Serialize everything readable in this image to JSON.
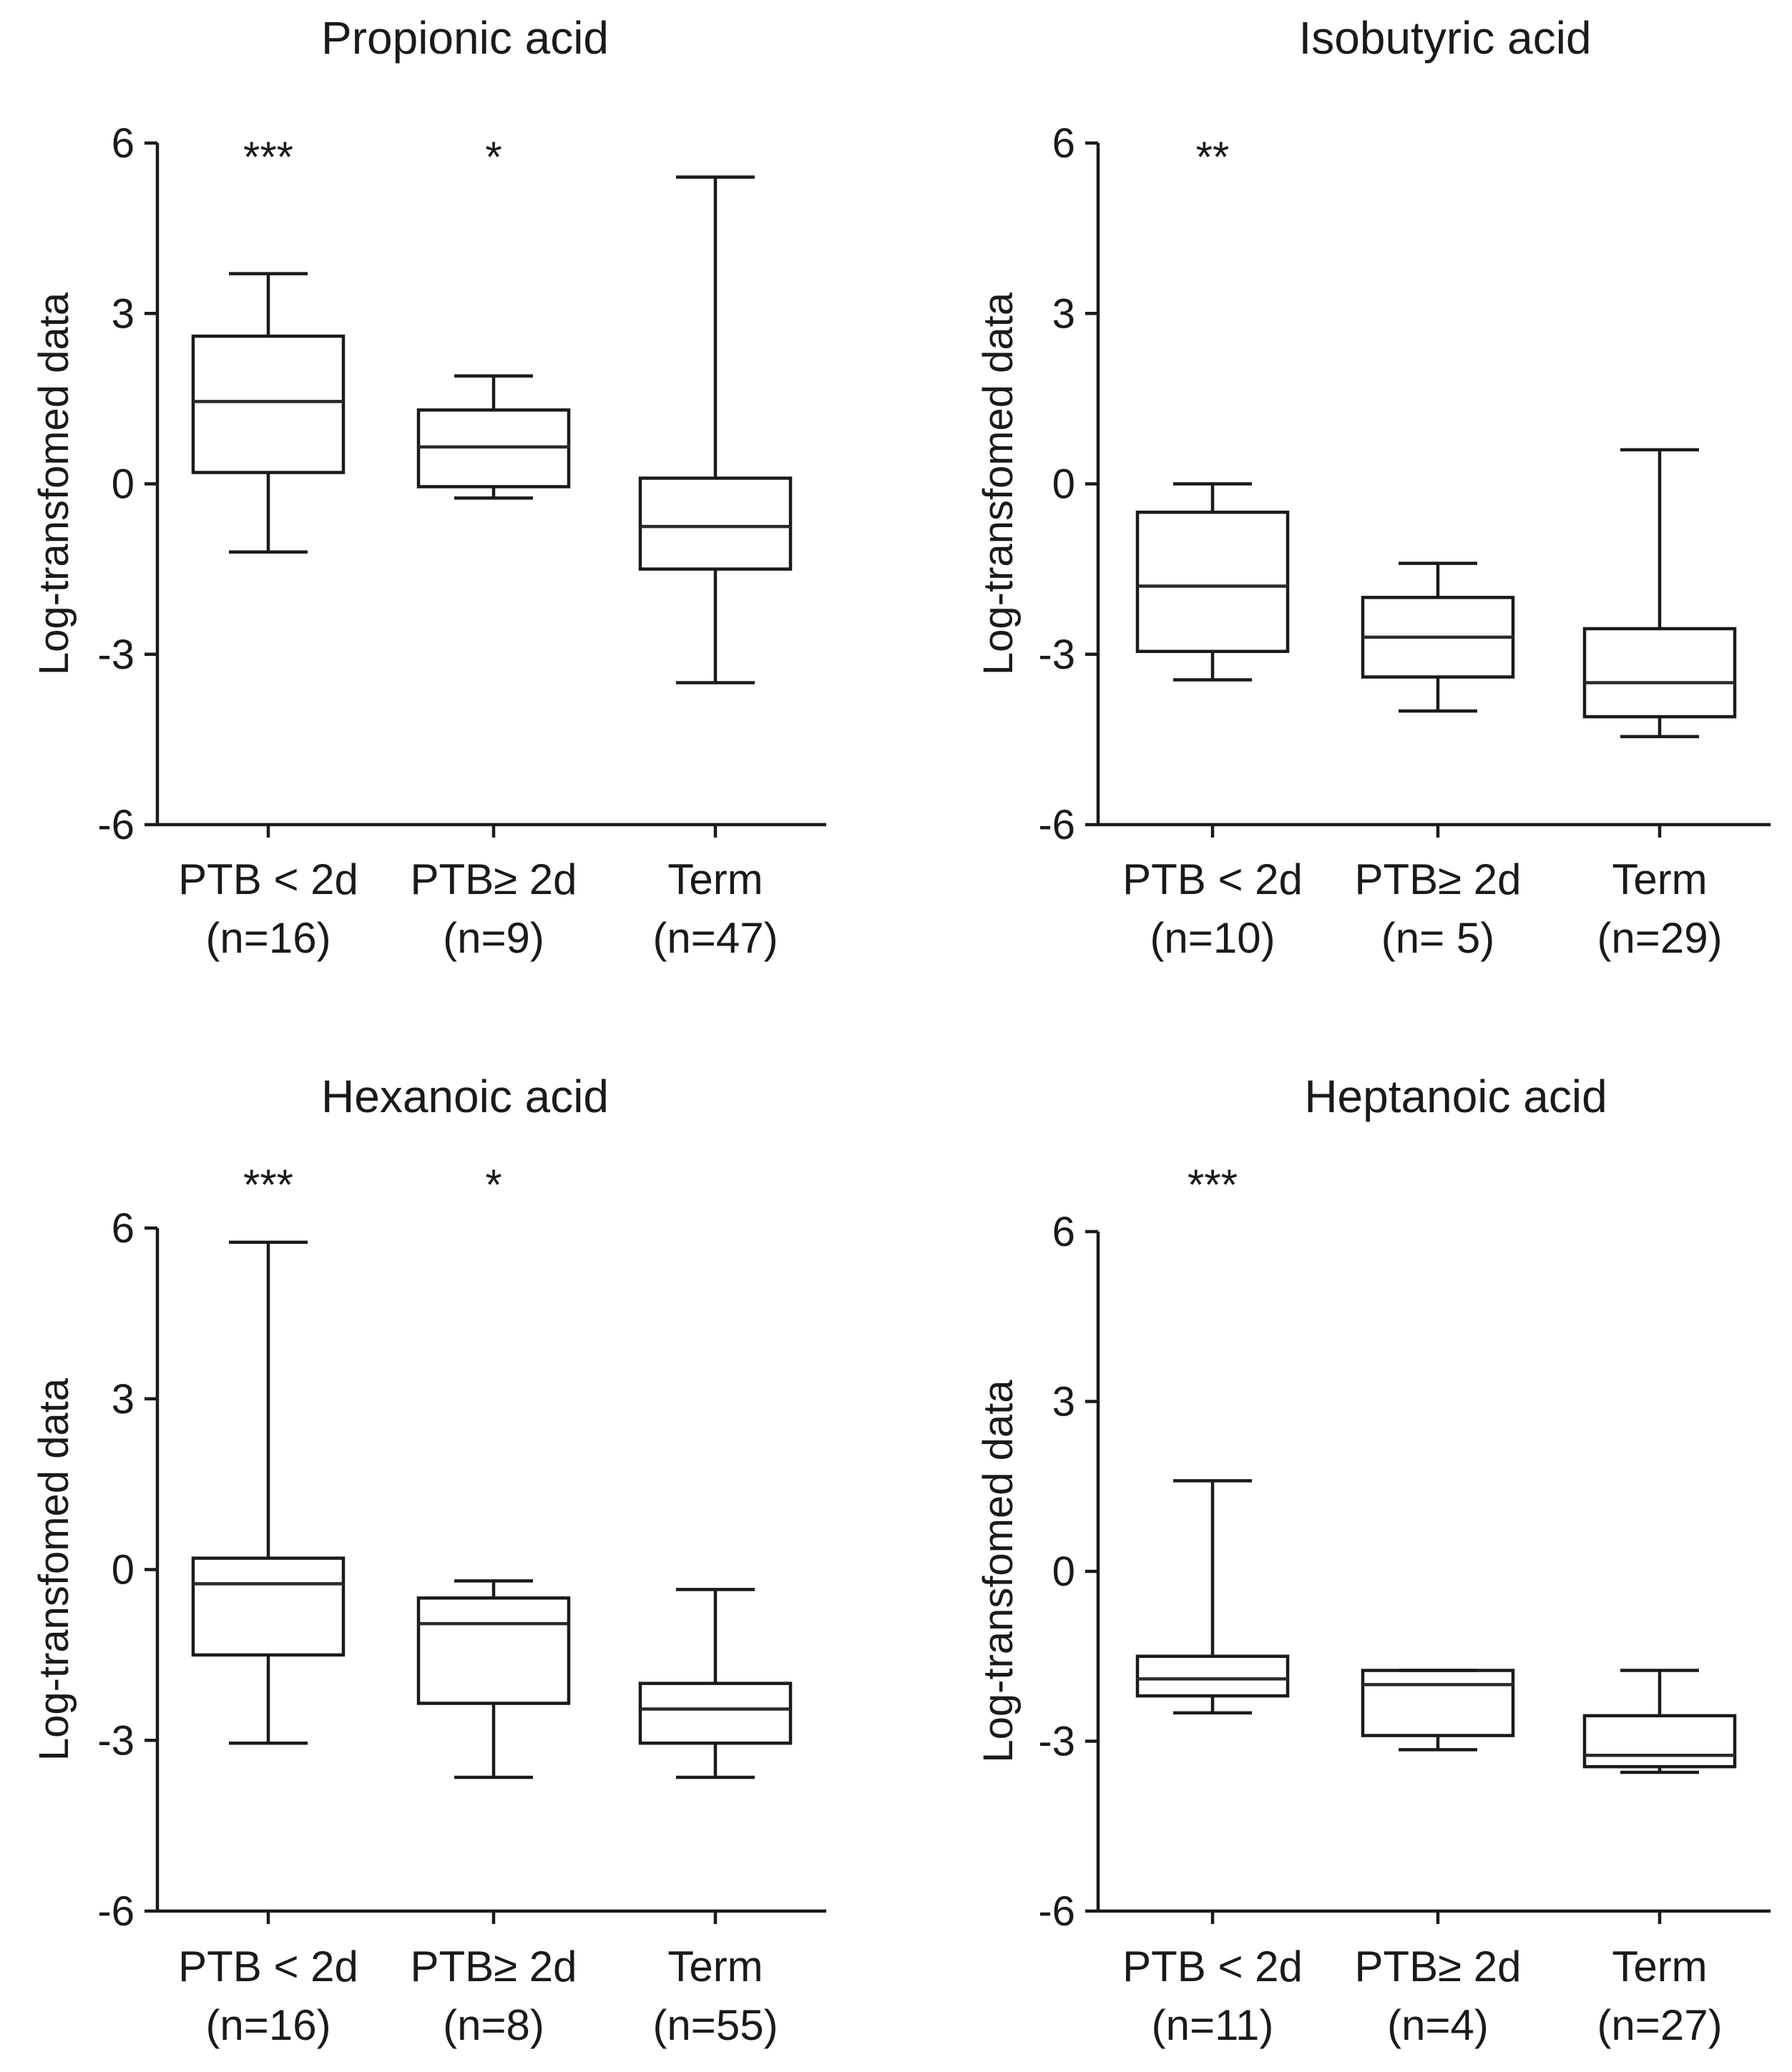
{
  "chart_data": [
    {
      "type": "boxplot",
      "title": "Propionic acid",
      "ylabel": "Log-transfomed data",
      "ylim": [
        -6,
        6
      ],
      "yticks": [
        "6",
        "3",
        "0",
        "-3",
        "-6"
      ],
      "categories": [
        {
          "label": "PTB < 2d",
          "n_label": "(n=16)",
          "whisker_low": -1.2,
          "q1": 0.2,
          "median": 1.45,
          "q3": 2.6,
          "whisker_high": 3.7,
          "significance": "***"
        },
        {
          "label": "PTB≥ 2d",
          "n_label": "(n=9)",
          "whisker_low": -0.25,
          "q1": -0.05,
          "median": 0.65,
          "q3": 1.3,
          "whisker_high": 1.9,
          "significance": "*"
        },
        {
          "label": "Term",
          "n_label": "(n=47)",
          "whisker_low": -3.5,
          "q1": -1.5,
          "median": -0.75,
          "q3": 0.1,
          "whisker_high": 5.4,
          "significance": ""
        }
      ]
    },
    {
      "type": "boxplot",
      "title": "Isobutyric acid",
      "ylabel": "Log-transfomed data",
      "ylim": [
        -6,
        6
      ],
      "yticks": [
        "6",
        "3",
        "0",
        "-3",
        "-6"
      ],
      "categories": [
        {
          "label": "PTB < 2d",
          "n_label": "(n=10)",
          "whisker_low": -3.45,
          "q1": -2.95,
          "median": -1.8,
          "q3": -0.5,
          "whisker_high": 0.0,
          "significance": "**"
        },
        {
          "label": "PTB≥ 2d",
          "n_label": "(n= 5)",
          "whisker_low": -4.0,
          "q1": -3.4,
          "median": -2.7,
          "q3": -2.0,
          "whisker_high": -1.4,
          "significance": ""
        },
        {
          "label": "Term",
          "n_label": "(n=29)",
          "whisker_low": -4.45,
          "q1": -4.1,
          "median": -3.5,
          "q3": -2.55,
          "whisker_high": 0.6,
          "significance": ""
        }
      ]
    },
    {
      "type": "boxplot",
      "title": "Hexanoic acid",
      "ylabel": "Log-transfomed data",
      "ylim": [
        -6,
        6
      ],
      "yticks": [
        "6",
        "3",
        "0",
        "-3",
        "-6"
      ],
      "categories": [
        {
          "label": "PTB < 2d",
          "n_label": "(n=16)",
          "whisker_low": -3.05,
          "q1": -1.5,
          "median": -0.25,
          "q3": 0.2,
          "whisker_high": 5.75,
          "significance": "***"
        },
        {
          "label": "PTB≥ 2d",
          "n_label": "(n=8)",
          "whisker_low": -3.65,
          "q1": -2.35,
          "median": -0.95,
          "q3": -0.5,
          "whisker_high": -0.2,
          "significance": "*"
        },
        {
          "label": "Term",
          "n_label": "(n=55)",
          "whisker_low": -3.65,
          "q1": -3.05,
          "median": -2.45,
          "q3": -2.0,
          "whisker_high": -0.35,
          "significance": ""
        }
      ]
    },
    {
      "type": "boxplot",
      "title": "Heptanoic acid",
      "ylabel": "Log-transfomed data",
      "ylim": [
        -6,
        6
      ],
      "yticks": [
        "6",
        "3",
        "0",
        "-3",
        "-6"
      ],
      "categories": [
        {
          "label": "PTB < 2d",
          "n_label": "(n=11)",
          "whisker_low": -2.5,
          "q1": -2.2,
          "median": -1.9,
          "q3": -1.5,
          "whisker_high": 1.6,
          "significance": "***"
        },
        {
          "label": "PTB≥ 2d",
          "n_label": "(n=4)",
          "whisker_low": -3.15,
          "q1": -2.9,
          "median": -2.0,
          "q3": -1.75,
          "whisker_high": -1.75,
          "significance": ""
        },
        {
          "label": "Term",
          "n_label": "(n=27)",
          "whisker_low": -3.55,
          "q1": -3.45,
          "median": -3.25,
          "q3": -2.55,
          "whisker_high": -1.75,
          "significance": ""
        }
      ]
    }
  ]
}
